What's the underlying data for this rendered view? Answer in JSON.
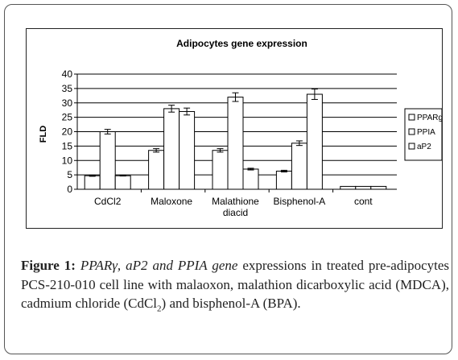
{
  "chart_data": {
    "type": "bar",
    "title": "Adipocytes gene expression",
    "xlabel": "",
    "ylabel": "FLD",
    "ylim": [
      0,
      40
    ],
    "yticks": [
      0,
      5,
      10,
      15,
      20,
      25,
      30,
      35,
      40
    ],
    "grid": true,
    "legend_position": "right",
    "categories": [
      "CdCl2",
      "Maloxone",
      "Malathione diacid",
      "Bisphenol-A",
      "cont"
    ],
    "category_lines": [
      [
        "CdCl2"
      ],
      [
        "Maloxone"
      ],
      [
        "Malathione",
        "diacid"
      ],
      [
        "Bisphenol-A"
      ],
      [
        "cont"
      ]
    ],
    "series": [
      {
        "name": "PPARg",
        "values": [
          4.7,
          13.5,
          13.5,
          6.3,
          1.0
        ],
        "errors": [
          0.2,
          0.6,
          0.6,
          0.3,
          0.0
        ]
      },
      {
        "name": "PPIA",
        "values": [
          20.0,
          28.0,
          32.0,
          16.0,
          1.0
        ],
        "errors": [
          0.8,
          1.2,
          1.5,
          0.8,
          0.0
        ]
      },
      {
        "name": "aP2",
        "values": [
          4.7,
          27.0,
          7.0,
          33.0,
          1.0
        ],
        "errors": [
          0.1,
          1.2,
          0.3,
          1.8,
          0.0
        ]
      }
    ],
    "bar_fill": "#ffffff",
    "bar_stroke": "#000000"
  },
  "caption": {
    "label": "Figure 1:",
    "italic": "PPARγ, aP2 and PPIA gene",
    "text_1": "expressions in treated pre-adipocytes PCS-210-010 cell line with malaoxon, malathion dicarboxylic acid (MDCA), cadmium chloride (CdCl",
    "subscript": "2",
    "text_2": ") and bisphenol-A (BPA)."
  }
}
